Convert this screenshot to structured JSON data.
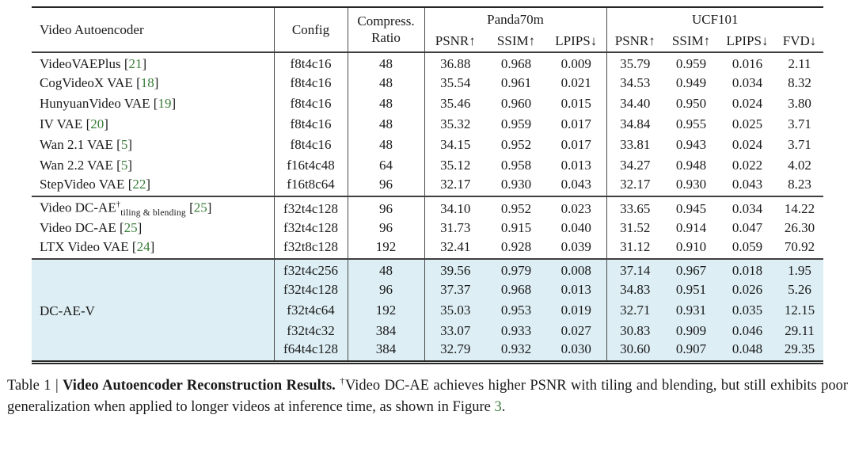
{
  "colors": {
    "text": "#1a1a1a",
    "citation_green": "#3a7d3a",
    "highlight_blue": "#ddeef4",
    "rule_dark": "#262626"
  },
  "table": {
    "cite_open": "[",
    "cite_close": "]",
    "header": {
      "video_autoencoder": "Video Autoencoder",
      "config": "Config",
      "compress_line1": "Compress.",
      "compress_line2": "Ratio",
      "panda_group": "Panda70m",
      "ucf_group": "UCF101",
      "panda_metrics": [
        "PSNR↑",
        "SSIM↑",
        "LPIPS↓"
      ],
      "ucf_metrics": [
        "PSNR↑",
        "SSIM↑",
        "LPIPS↓",
        "FVD↓"
      ]
    },
    "groups": [
      {
        "highlight": false,
        "rows": [
          {
            "name": "VideoVAEPlus",
            "cite": "21",
            "config": "f8t4c16",
            "ratio": "48",
            "values": [
              "36.88",
              "0.968",
              "0.009",
              "35.79",
              "0.959",
              "0.016",
              "2.11"
            ]
          },
          {
            "name": "CogVideoX VAE",
            "cite": "18",
            "config": "f8t4c16",
            "ratio": "48",
            "values": [
              "35.54",
              "0.961",
              "0.021",
              "34.53",
              "0.949",
              "0.034",
              "8.32"
            ]
          },
          {
            "name": "HunyuanVideo VAE",
            "cite": "19",
            "config": "f8t4c16",
            "ratio": "48",
            "values": [
              "35.46",
              "0.960",
              "0.015",
              "34.40",
              "0.950",
              "0.024",
              "3.80"
            ]
          },
          {
            "name": "IV VAE",
            "cite": "20",
            "config": "f8t4c16",
            "ratio": "48",
            "values": [
              "35.32",
              "0.959",
              "0.017",
              "34.84",
              "0.955",
              "0.025",
              "3.71"
            ]
          },
          {
            "name": "Wan 2.1 VAE",
            "cite": "5",
            "config": "f8t4c16",
            "ratio": "48",
            "values": [
              "34.15",
              "0.952",
              "0.017",
              "33.81",
              "0.943",
              "0.024",
              "3.71"
            ]
          },
          {
            "name": "Wan 2.2 VAE",
            "cite": "5",
            "config": "f16t4c48",
            "ratio": "64",
            "values": [
              "35.12",
              "0.958",
              "0.013",
              "34.27",
              "0.948",
              "0.022",
              "4.02"
            ]
          },
          {
            "name": "StepVideo VAE",
            "cite": "22",
            "config": "f16t8c64",
            "ratio": "96",
            "values": [
              "32.17",
              "0.930",
              "0.043",
              "32.17",
              "0.930",
              "0.043",
              "8.23"
            ]
          }
        ]
      },
      {
        "highlight": false,
        "rows": [
          {
            "name": "Video DC-AE",
            "sup": "†",
            "sub": "tiling & blending",
            "cite": "25",
            "config": "f32t4c128",
            "ratio": "96",
            "values": [
              "34.10",
              "0.952",
              "0.023",
              "33.65",
              "0.945",
              "0.034",
              "14.22"
            ]
          },
          {
            "name": "Video DC-AE",
            "cite": "25",
            "config": "f32t4c128",
            "ratio": "96",
            "values": [
              "31.73",
              "0.915",
              "0.040",
              "31.52",
              "0.914",
              "0.047",
              "26.30"
            ]
          },
          {
            "name": "LTX Video VAE",
            "cite": "24",
            "config": "f32t8c128",
            "ratio": "192",
            "values": [
              "32.41",
              "0.928",
              "0.039",
              "31.12",
              "0.910",
              "0.059",
              "70.92"
            ]
          }
        ]
      },
      {
        "highlight": true,
        "merged_name": "DC-AE-V",
        "rows": [
          {
            "config": "f32t4c256",
            "ratio": "48",
            "values": [
              "39.56",
              "0.979",
              "0.008",
              "37.14",
              "0.967",
              "0.018",
              "1.95"
            ]
          },
          {
            "config": "f32t4c128",
            "ratio": "96",
            "values": [
              "37.37",
              "0.968",
              "0.013",
              "34.83",
              "0.951",
              "0.026",
              "5.26"
            ]
          },
          {
            "config": "f32t4c64",
            "ratio": "192",
            "values": [
              "35.03",
              "0.953",
              "0.019",
              "32.71",
              "0.931",
              "0.035",
              "12.15"
            ]
          },
          {
            "config": "f32t4c32",
            "ratio": "384",
            "values": [
              "33.07",
              "0.933",
              "0.027",
              "30.83",
              "0.909",
              "0.046",
              "29.11"
            ]
          },
          {
            "config": "f64t4c128",
            "ratio": "384",
            "values": [
              "32.79",
              "0.932",
              "0.030",
              "30.60",
              "0.907",
              "0.048",
              "29.35"
            ]
          }
        ]
      }
    ]
  },
  "caption": {
    "label": "Table 1",
    "separator": "|",
    "title": "Video Autoencoder Reconstruction Results.",
    "dagger": "†",
    "body": "Video DC-AE achieves higher PSNR with tiling and blending, but still exhibits poor generalization when applied to longer videos at inference time, as shown in Figure ",
    "figure_ref": "3",
    "period": "."
  }
}
